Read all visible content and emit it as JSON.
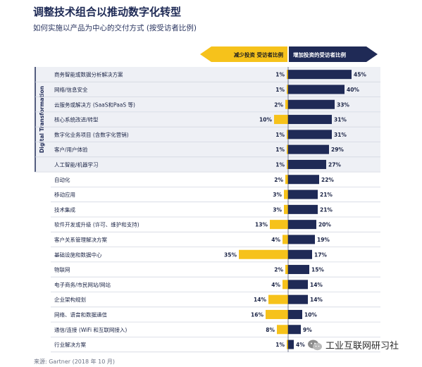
{
  "title": "调整技术组合以推动数字化转型",
  "subtitle": "如何实施以产品为中心的交付方式 (按受访者比例)",
  "legend": {
    "decrease": "减少投资 受访者比例",
    "increase": "增加投资的受访者比例"
  },
  "group_label": "Digital Transformation",
  "source": "来源: Gartner (2018 年 10 月)",
  "watermark": "工业互联网研习社",
  "colors": {
    "decrease": "#f6c21b",
    "increase": "#1f2a56",
    "group_bg": "#eef0f5",
    "row_line": "#d3d7e2"
  },
  "chart_data": {
    "type": "bar",
    "orientation": "horizontal-diverging",
    "categories": [
      "商务智能或数据分析解决方案",
      "网络/信息安全",
      "云服务或解决方 (SaaS和PaaS 等)",
      "核心系统改进/转型",
      "数字化业务项目 (含数字化营销)",
      "客户/用户体验",
      "人工智能/机器学习",
      "自动化",
      "移动应用",
      "技术集成",
      "软件开发或升级 (许可、维护和支持)",
      "客户关系管理解决方案",
      "基础设施和数据中心",
      "物联网",
      "电子商务/市民网站/网站",
      "企业架构规划",
      "网络、语音和数据通信",
      "通信/连接 (WiFi 和互联网接入)",
      "行业解决方案"
    ],
    "series": [
      {
        "name": "减少投资 受访者比例",
        "values": [
          1,
          1,
          2,
          10,
          1,
          1,
          1,
          2,
          3,
          3,
          13,
          4,
          35,
          2,
          4,
          14,
          16,
          8,
          1
        ]
      },
      {
        "name": "增加投资的受访者比例",
        "values": [
          45,
          40,
          33,
          31,
          31,
          29,
          27,
          22,
          21,
          21,
          20,
          19,
          17,
          15,
          14,
          14,
          10,
          9,
          4
        ]
      }
    ],
    "value_labels": {
      "decrease": [
        "1%",
        "1%",
        "2%",
        "10%",
        "1%",
        "1%",
        "1%",
        "2%",
        "3%",
        "3%",
        "13%",
        "4%",
        "35%",
        "2%",
        "4%",
        "14%",
        "16%",
        "8%",
        "1%"
      ],
      "increase": [
        "45%",
        "40%",
        "33%",
        "31%",
        "31%",
        "29%",
        "27%",
        "22%",
        "21%",
        "21%",
        "20%",
        "19%",
        "17%",
        "15%",
        "14%",
        "14%",
        "10%",
        "9%",
        "4%"
      ]
    },
    "grouped_count": 7,
    "xlim": [
      0,
      45
    ],
    "unit": "%",
    "grid": false
  }
}
